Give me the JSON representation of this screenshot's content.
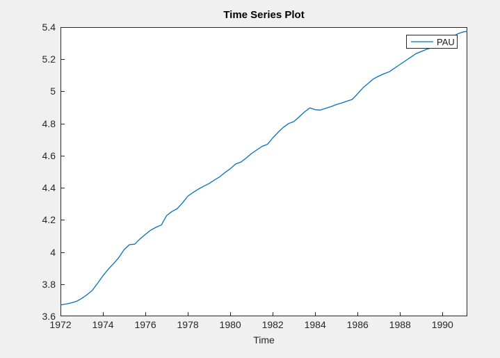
{
  "window": {
    "background": "#F0F0F0"
  },
  "chart_data": {
    "type": "line",
    "title": "Time Series Plot",
    "xlabel": "Time",
    "ylabel": "",
    "grid": false,
    "legend_position": "top-right-inside",
    "line_color": "#0072BD",
    "axis_color": "#262626",
    "plot_background": "#FFFFFF",
    "x_range": [
      1972,
      1991.17
    ],
    "y_range": [
      3.6,
      5.4
    ],
    "x_ticks": [
      "1972",
      "1974",
      "1976",
      "1978",
      "1980",
      "1982",
      "1984",
      "1986",
      "1988",
      "1990"
    ],
    "y_ticks": [
      "3.6",
      "3.8",
      "4",
      "4.2",
      "4.4",
      "4.6",
      "4.8",
      "5",
      "5.2",
      "5.4"
    ],
    "x": [
      1972,
      1972.25,
      1972.5,
      1972.75,
      1973,
      1973.25,
      1973.5,
      1973.75,
      1974,
      1974.25,
      1974.5,
      1974.75,
      1975,
      1975.25,
      1975.5,
      1975.75,
      1976,
      1976.25,
      1976.5,
      1976.75,
      1977,
      1977.25,
      1977.5,
      1977.75,
      1978,
      1978.25,
      1978.5,
      1978.75,
      1979,
      1979.25,
      1979.5,
      1979.75,
      1980,
      1980.25,
      1980.5,
      1980.75,
      1981,
      1981.25,
      1981.5,
      1981.75,
      1982,
      1982.25,
      1982.5,
      1982.75,
      1983,
      1983.25,
      1983.5,
      1983.75,
      1984,
      1984.25,
      1984.5,
      1984.75,
      1985,
      1985.25,
      1985.5,
      1985.75,
      1986,
      1986.25,
      1986.5,
      1986.75,
      1987,
      1987.25,
      1987.5,
      1987.75,
      1988,
      1988.25,
      1988.5,
      1988.75,
      1989,
      1989.25,
      1989.5,
      1989.75,
      1990,
      1990.25,
      1990.5,
      1990.75,
      1991,
      1991.17
    ],
    "series": [
      {
        "name": "PAU",
        "values": [
          3.671,
          3.676,
          3.683,
          3.693,
          3.711,
          3.734,
          3.762,
          3.806,
          3.852,
          3.893,
          3.928,
          3.966,
          4.015,
          4.046,
          4.049,
          4.082,
          4.11,
          4.136,
          4.154,
          4.168,
          4.227,
          4.252,
          4.27,
          4.306,
          4.348,
          4.371,
          4.392,
          4.41,
          4.426,
          4.448,
          4.468,
          4.495,
          4.518,
          4.548,
          4.56,
          4.585,
          4.613,
          4.636,
          4.658,
          4.67,
          4.71,
          4.745,
          4.776,
          4.8,
          4.812,
          4.842,
          4.872,
          4.897,
          4.886,
          4.884,
          4.895,
          4.905,
          4.918,
          4.928,
          4.939,
          4.95,
          4.985,
          5.022,
          5.05,
          5.078,
          5.095,
          5.11,
          5.122,
          5.145,
          5.168,
          5.19,
          5.212,
          5.235,
          5.248,
          5.262,
          5.272,
          5.288,
          5.306,
          5.325,
          5.344,
          5.36,
          5.371,
          5.373
        ]
      }
    ]
  }
}
